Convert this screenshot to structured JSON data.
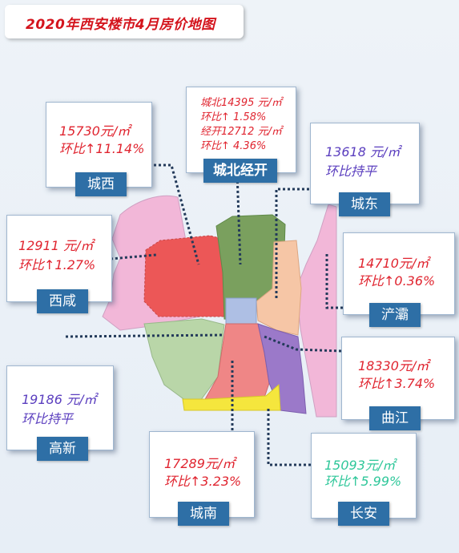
{
  "title": "2020年西安楼市4月房价地图",
  "colors": {
    "title": "#d4141d",
    "label_bg": "#2e6fa6",
    "up": "#e0242f",
    "flat": "#5b3fbf",
    "changan": "#2fc79a"
  },
  "districts": {
    "chengxi": {
      "name": "城西",
      "price": "15730元/㎡",
      "change": "环比↑11.14%"
    },
    "chengbei": {
      "name": "城北经开",
      "line1": "城北14395 元/㎡",
      "line2": "环比↑ 1.58%",
      "line3": "经开12712 元/㎡",
      "line4": "环比↑ 4.36%"
    },
    "chengdong": {
      "name": "城东",
      "price": "13618 元/㎡",
      "change": "环比持平"
    },
    "xixian": {
      "name": "西咸",
      "price": "12911 元/㎡",
      "change": "环比↑1.27%"
    },
    "chanba": {
      "name": "浐灞",
      "price": "14710元/㎡",
      "change": "环比↑0.36%"
    },
    "qujiang": {
      "name": "曲江",
      "price": "18330元/㎡",
      "change": "环比↑3.74%"
    },
    "gaoxin": {
      "name": "高新",
      "price": "19186 元/㎡",
      "change": "环比持平"
    },
    "chengnan": {
      "name": "城南",
      "price": "17289元/㎡",
      "change": "环比↑3.23%"
    },
    "changan": {
      "name": "长安",
      "price": "15093元/㎡",
      "change": "环比↑5.99%"
    }
  }
}
